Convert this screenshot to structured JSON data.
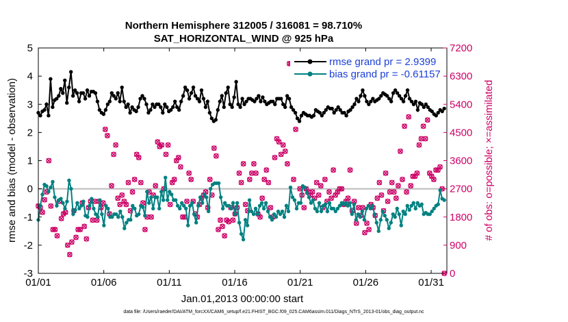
{
  "chart_data": {
    "type": "line",
    "title_line1": "Northern Hemisphere 312005 / 316081 = 98.710%",
    "title_line2": "SAT_HORIZONTAL_WIND @ 925 hPa",
    "xlabel": "Jan.01,2013 00:00:00 start",
    "ylabel_left": "rmse and bias (model - observation)",
    "ylabel_right": "# of obs: o=possible; ×=assimilated",
    "footer": "data file: /Users/raeder/DAI/ATM_forcXX/CAM6_setup/f.e21.FHIST_BGC.f09_025.CAM6assim.011/Diags_NTrS_2013-01/obs_diag_output.nc",
    "x_ticks": [
      "01/01",
      "01/06",
      "01/11",
      "01/16",
      "01/21",
      "01/26",
      "01/31"
    ],
    "x_tick_days": [
      0,
      5,
      10,
      15,
      20,
      25,
      30
    ],
    "xlim": [
      0,
      31.2
    ],
    "ylim_left": [
      -3,
      5
    ],
    "y_ticks_left": [
      "-3",
      "-2",
      "-1",
      "0",
      "1",
      "2",
      "3",
      "4",
      "5"
    ],
    "ylim_right": [
      0,
      7200
    ],
    "y_ticks_right": [
      "0",
      "900",
      "1800",
      "2700",
      "3600",
      "4500",
      "5400",
      "6300",
      "7200"
    ],
    "zero_line": 0,
    "colors": {
      "rmse": "#000000",
      "bias": "#008080",
      "obs": "#cc0066",
      "zero": "#bbbbbb",
      "legend_text": "#1a3fd6"
    },
    "series": [
      {
        "name": "rmse",
        "legend": "rmse grand pr = 2.9399",
        "values": [
          2.7,
          2.6,
          2.75,
          2.8,
          3.0,
          2.6,
          3.9,
          2.9,
          3.15,
          3.2,
          3.3,
          3.55,
          3.4,
          3.85,
          3.05,
          3.6,
          4.15,
          3.3,
          3.5,
          3.4,
          3.1,
          3.4,
          3.4,
          3.2,
          3.5,
          3.3,
          3.45,
          3.45,
          3.4,
          3.1,
          2.8,
          2.7,
          2.65,
          2.8,
          3.0,
          3.1,
          3.4,
          3.3,
          3.2,
          3.4,
          3.1,
          3.6,
          3.1,
          2.9,
          3.0,
          2.7,
          2.9,
          2.8,
          2.75,
          2.9,
          3.2,
          3.3,
          3.2,
          3.0,
          2.7,
          2.8,
          3.0,
          2.9,
          3.0,
          3.0,
          2.9,
          2.7,
          3.0,
          2.9,
          2.75,
          2.8,
          2.9,
          3.1,
          2.9,
          2.8,
          3.1,
          3.3,
          3.6,
          3.5,
          3.2,
          3.4,
          3.6,
          3.3,
          3.2,
          3.1,
          3.5,
          3.2,
          2.9,
          3.1,
          2.7,
          2.5,
          2.4,
          2.45,
          2.8,
          3.1,
          3.3,
          2.9,
          3.4,
          3.6,
          3.0,
          2.9,
          3.25,
          3.8,
          3.0,
          2.9,
          3.2,
          3.0,
          3.1,
          3.2,
          3.2,
          3.15,
          3.1,
          3.2,
          3.3,
          3.1,
          3.25,
          3.1,
          3.0,
          3.05,
          3.1,
          3.1,
          3.0,
          3.2,
          3.2,
          3.2,
          3.0,
          2.9,
          3.3,
          3.2,
          2.9,
          2.8,
          2.7,
          2.5,
          2.4,
          2.6,
          2.7,
          2.65,
          2.6,
          2.6,
          2.55,
          2.6,
          2.8,
          2.75,
          2.7,
          2.6,
          2.7,
          2.8,
          2.9,
          2.85,
          2.85,
          2.7,
          2.8,
          2.9,
          2.8,
          2.7,
          2.7,
          2.6,
          2.75,
          2.8,
          2.9,
          3.0,
          3.2,
          3.1,
          3.3,
          3.5,
          3.3,
          3.1,
          3.0,
          3.1,
          3.2,
          3.1,
          3.15,
          3.2,
          3.3,
          3.4,
          3.35,
          3.3,
          3.2,
          3.1,
          3.4,
          3.5,
          3.4,
          3.3,
          3.2,
          3.1,
          3.3,
          3.5,
          3.2,
          3.1,
          3.0,
          3.1,
          2.8,
          3.05,
          3.0,
          2.9,
          3.0,
          2.9,
          2.8,
          2.75,
          2.65,
          2.6,
          2.7,
          2.8,
          2.75,
          2.85
        ]
      },
      {
        "name": "bias",
        "legend": "bias grand pr = -0.61157",
        "values": [
          -1.1,
          -0.6,
          -0.2,
          0.15,
          0.1,
          -0.1,
          0.05,
          0.25,
          -0.3,
          -0.6,
          -0.4,
          -0.35,
          -0.5,
          -0.7,
          -0.45,
          0.3,
          0.0,
          -0.9,
          -0.75,
          -0.5,
          -0.7,
          -0.6,
          -0.45,
          -0.95,
          -1.0,
          -0.6,
          -0.35,
          -0.7,
          -0.9,
          -1.0,
          -0.4,
          -0.9,
          -1.3,
          -0.6,
          -0.7,
          -1.0,
          -1.0,
          -0.9,
          -0.9,
          -1.0,
          -0.8,
          -1.0,
          -1.4,
          -1.2,
          -1.1,
          -1.1,
          -0.6,
          -0.7,
          -0.95,
          -0.9,
          -0.6,
          -0.65,
          -0.95,
          -0.1,
          -0.5,
          -0.3,
          -0.7,
          -0.3,
          -0.3,
          -0.7,
          -0.1,
          -0.4,
          0.4,
          -0.4,
          -0.1,
          -0.2,
          -0.4,
          -0.4,
          -0.6,
          -0.7,
          -0.5,
          -0.6,
          -0.7,
          -1.3,
          -0.6,
          -0.5,
          -0.9,
          -1.2,
          -0.6,
          -0.3,
          -0.5,
          -0.2,
          -0.3,
          -0.8,
          0.0,
          0.15,
          0.2,
          0.2,
          0.2,
          -0.3,
          -0.7,
          -0.5,
          -0.6,
          -0.6,
          -0.7,
          -0.5,
          -0.9,
          -0.5,
          -1.2,
          -1.6,
          -1.8,
          -1.1,
          -1.3,
          -0.4,
          -0.8,
          -0.9,
          -0.7,
          -0.9,
          -0.6,
          -0.5,
          -0.7,
          -0.5,
          -0.8,
          -1.0,
          -1.1,
          -0.9,
          -1.0,
          -0.8,
          -0.9,
          -0.8,
          -1.0,
          -0.6,
          -0.8,
          0.05,
          -0.3,
          -0.4,
          -0.7,
          -0.5,
          -0.5,
          0.1,
          0.05,
          -0.15,
          -0.3,
          -0.5,
          -0.4,
          -0.7,
          -0.8,
          -0.5,
          -0.8,
          -0.6,
          -0.55,
          -0.8,
          -0.5,
          -0.7,
          -0.7,
          -0.8,
          -0.7,
          -0.6,
          -0.5,
          -0.55,
          -0.5,
          -0.6,
          -0.5,
          -0.9,
          -0.55,
          -1.1,
          -0.9,
          -1.0,
          -0.8,
          -1.1,
          -0.7,
          -0.6,
          -0.7,
          -0.6,
          -0.9,
          -1.2,
          -1.5,
          -1.1,
          -0.8,
          -0.95,
          -1.1,
          -1.4,
          -1.2,
          -0.9,
          -1.0,
          -0.7,
          -0.9,
          -1.3,
          -0.8,
          -0.9,
          -0.6,
          -0.75,
          -0.6,
          -0.5,
          -0.7,
          -0.5,
          -0.6,
          -0.55,
          -0.9,
          -0.85,
          -0.9,
          -0.9,
          -0.8,
          -0.7,
          -0.6,
          -0.55,
          -0.05,
          -0.35,
          -0.4
        ]
      },
      {
        "name": "obs",
        "legend": "",
        "values": [
          2150,
          2100,
          1950,
          2350,
          2600,
          3600,
          2150,
          1400,
          1400,
          1200,
          2300,
          1750,
          1900,
          1950,
          900,
          600,
          1000,
          2000,
          1150,
          1400,
          1400,
          2250,
          1500,
          1100,
          2100,
          2300,
          1700,
          2300,
          1700,
          2300,
          2100,
          2250,
          4600,
          4400,
          1900,
          2800,
          3800,
          4100,
          2400,
          2200,
          2500,
          2300,
          2200,
          2900,
          2000,
          2600,
          3000,
          3800,
          3700,
          2900,
          2250,
          1400,
          1800,
          2600,
          1800,
          2500,
          2800,
          4200,
          4050,
          4100,
          2700,
          3800,
          4100,
          2200,
          2900,
          3000,
          3600,
          3700,
          3400,
          1800,
          1800,
          2300,
          3200,
          3000,
          2300,
          1900,
          1800,
          2200,
          2400,
          2500,
          2600,
          2100,
          3000,
          2500,
          4000,
          3750,
          1400,
          1700,
          1500,
          1200,
          1700,
          1650,
          2100,
          1700,
          1900,
          2100,
          3200,
          2900,
          3500,
          2200,
          2000,
          3000,
          3200,
          3500,
          3200,
          1900,
          1800,
          2400,
          3000,
          3300,
          2900,
          2100,
          1800,
          3700,
          4300,
          4200,
          3800,
          4100,
          3900,
          3500,
          6700,
          6700,
          3000,
          4600,
          6500,
          2700,
          2500,
          2100,
          2700,
          2600,
          2500,
          2600,
          2400,
          2900,
          2500,
          2800,
          2100,
          3000,
          2300,
          2600,
          2400,
          3300,
          2500,
          2600,
          2700,
          2700,
          2200,
          2300,
          2400,
          3300,
          2000,
          2300,
          1600,
          2100,
          1850,
          2100,
          1300,
          1600,
          1400,
          2200,
          2100,
          1850,
          2400,
          2900,
          2500,
          2000,
          3200,
          2300,
          2600,
          2900,
          2600,
          2400,
          2800,
          3900,
          3000,
          4700,
          2600,
          5000,
          2800,
          3100,
          3100,
          3200,
          4100,
          4300,
          4700,
          4300,
          4900,
          3200,
          3100,
          3000,
          3300,
          3300,
          3400,
          2700,
          0
        ]
      }
    ]
  }
}
